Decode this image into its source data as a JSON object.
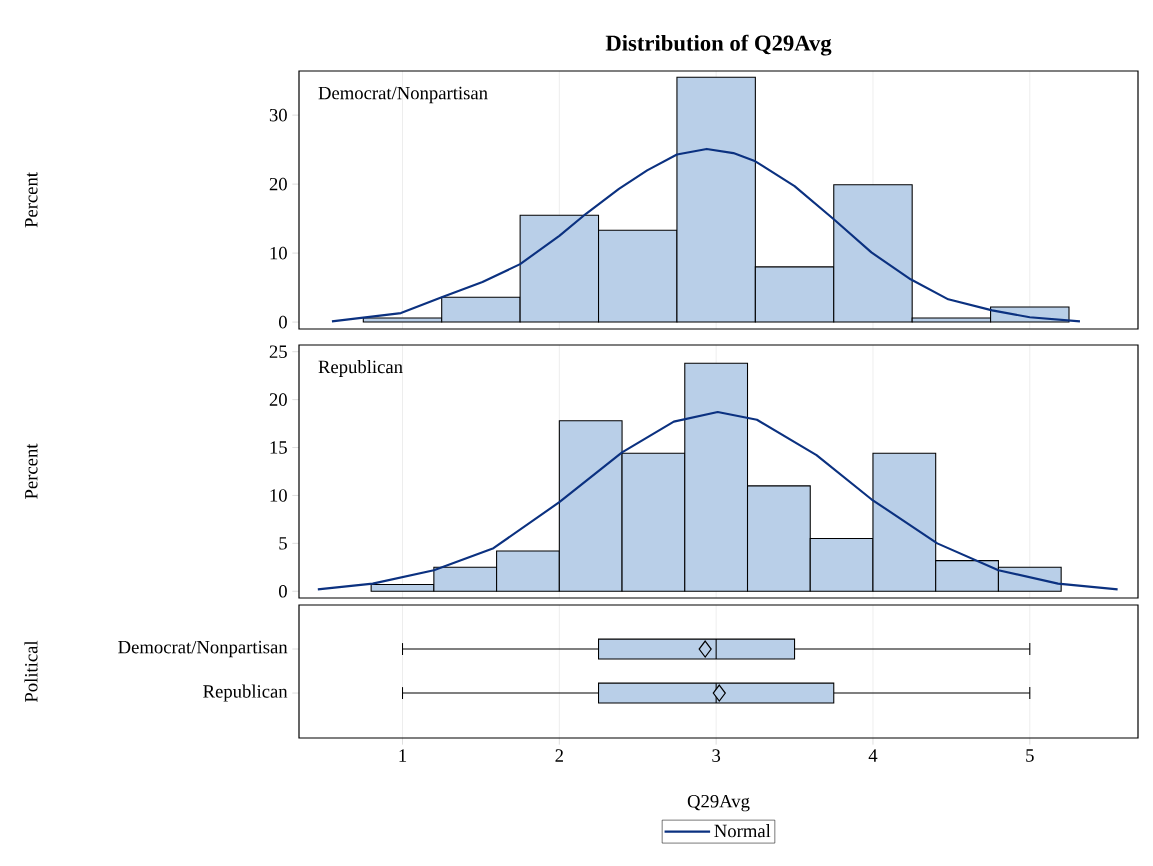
{
  "chart_data": [
    {
      "type": "histogram",
      "title": "Distribution of Q29Avg",
      "ylabel": "Percent",
      "annotations": [
        "Democrat/Nonpartisan"
      ],
      "bins": [
        0.75,
        1.25,
        1.75,
        2.25,
        2.75,
        3.25,
        3.75,
        4.25,
        4.75,
        5.25
      ],
      "values": [
        0.6,
        3.6,
        15.5,
        13.3,
        35.5,
        8.0,
        19.9,
        0.6,
        2.2
      ],
      "color": "#b9cfe8",
      "xlim": [
        0.34,
        5.69
      ],
      "xticks": [
        1,
        2,
        3,
        4,
        5
      ],
      "ylim": [
        -1,
        36.4
      ],
      "yticks": [
        0,
        10,
        20,
        30
      ],
      "grid": "x",
      "tick_labels": "y",
      "series": [
        {
          "type": "line",
          "color": "#0b3180",
          "x": [
            0.55,
            0.99,
            1.25,
            1.51,
            1.75,
            2.0,
            2.17,
            2.38,
            2.56,
            2.75,
            2.94,
            3.11,
            3.25,
            3.5,
            3.75,
            3.99,
            4.24,
            4.48,
            4.76,
            5.0,
            5.32
          ],
          "values": [
            0.1,
            1.3,
            3.6,
            5.8,
            8.4,
            12.5,
            15.7,
            19.3,
            22.0,
            24.3,
            25.1,
            24.5,
            23.3,
            19.7,
            14.9,
            10.1,
            6.2,
            3.3,
            1.7,
            0.7,
            0.1
          ]
        }
      ]
    },
    {
      "type": "histogram",
      "ylabel": "Percent",
      "annotations": [
        "Republican"
      ],
      "bins": [
        0.8,
        1.2,
        1.6,
        2.0,
        2.4,
        2.8,
        3.2,
        3.6,
        4.0,
        4.4,
        4.8,
        5.2
      ],
      "values": [
        0.7,
        2.5,
        4.2,
        17.8,
        14.4,
        23.8,
        11.0,
        5.5,
        14.4,
        3.2,
        2.5
      ],
      "color": "#b9cfe8",
      "xlim": [
        0.34,
        5.69
      ],
      "xticks": [
        1,
        2,
        3,
        4,
        5
      ],
      "ylim": [
        -0.7,
        25.7
      ],
      "yticks": [
        0,
        5,
        10,
        15,
        20,
        25
      ],
      "grid": "x",
      "tick_labels": "y",
      "legend": "bottom",
      "series": [
        {
          "type": "line",
          "name": "Normal",
          "color": "#0b3180",
          "x": [
            0.46,
            0.81,
            1.2,
            1.58,
            2.0,
            2.4,
            2.73,
            3.01,
            3.26,
            3.64,
            3.99,
            4.41,
            4.8,
            5.18,
            5.56
          ],
          "values": [
            0.2,
            0.8,
            2.2,
            4.5,
            9.3,
            14.5,
            17.7,
            18.7,
            17.9,
            14.2,
            9.6,
            5.0,
            2.2,
            0.8,
            0.2
          ]
        }
      ]
    },
    {
      "type": "box",
      "orientation": "horizontal",
      "xlabel": "Q29Avg",
      "ylabel": "Political",
      "categories": [
        "Democrat/Nonpartisan",
        "Republican"
      ],
      "color": "#b9cfe8",
      "xlim": [
        0.34,
        5.69
      ],
      "xticks": [
        1,
        2,
        3,
        4,
        5
      ],
      "grid": "x",
      "boxes": [
        {
          "low": 1,
          "q1": 2.25,
          "median": 3,
          "q3": 3.5,
          "high": 5,
          "mean": 2.93
        },
        {
          "low": 1,
          "q1": 2.25,
          "median": 3,
          "q3": 3.75,
          "high": 5,
          "mean": 3.02
        }
      ]
    }
  ]
}
